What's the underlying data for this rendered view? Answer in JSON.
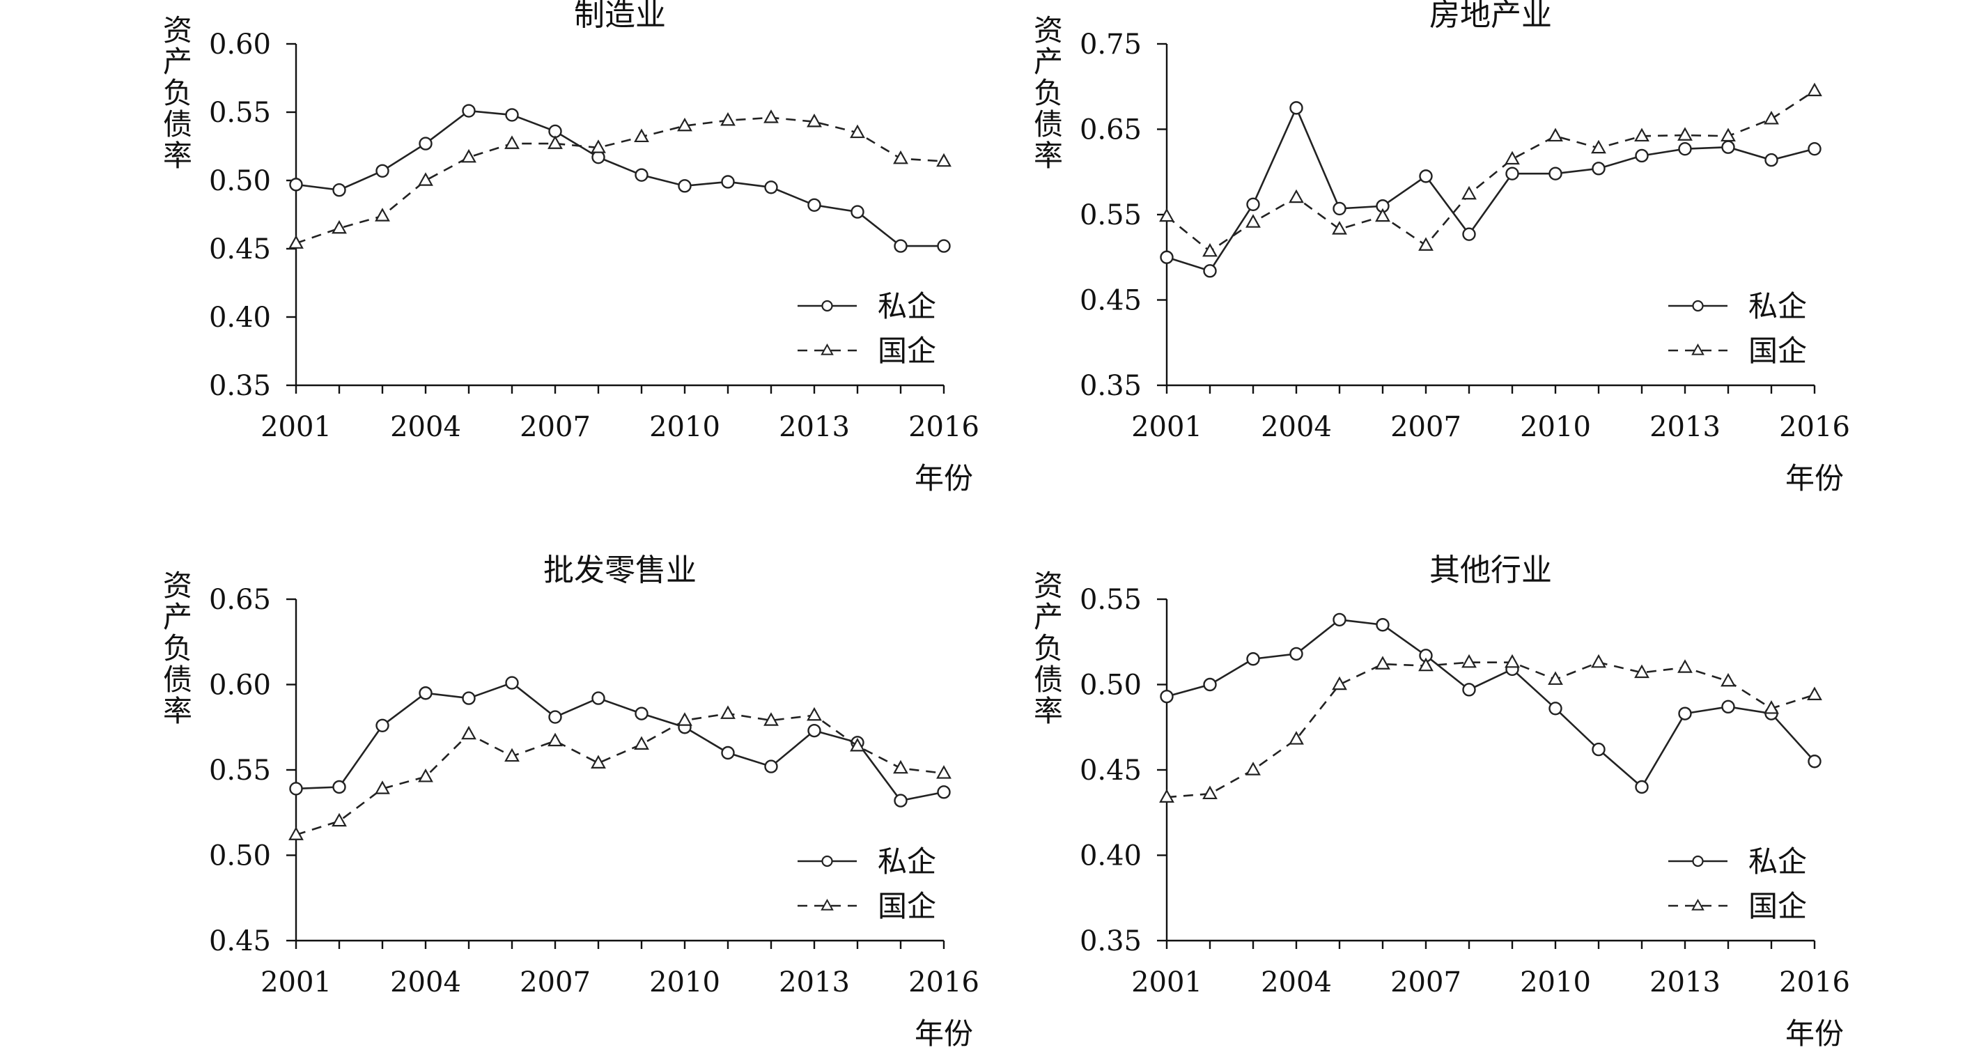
{
  "colors": {
    "axis": "#111111",
    "line": "#222222",
    "background": "#ffffff"
  },
  "chart_data": [
    {
      "type": "line",
      "title": "制造业",
      "xlabel": "年份",
      "ylabel": "资产负债率",
      "ylim": [
        0.35,
        0.6
      ],
      "yticks": [
        "0.60",
        "0.55",
        "0.50",
        "0.45",
        "0.40",
        "0.35"
      ],
      "xticks": [
        "2001",
        "2004",
        "2007",
        "2010",
        "2013",
        "2016"
      ],
      "x": [
        2001,
        2002,
        2003,
        2004,
        2005,
        2006,
        2007,
        2008,
        2009,
        2010,
        2011,
        2012,
        2013,
        2014,
        2015,
        2016
      ],
      "series": [
        {
          "name": "私企",
          "values": [
            0.497,
            0.493,
            0.507,
            0.527,
            0.551,
            0.548,
            0.536,
            0.517,
            0.504,
            0.496,
            0.499,
            0.495,
            0.482,
            0.477,
            0.452,
            0.452
          ]
        },
        {
          "name": "国企",
          "values": [
            0.454,
            0.465,
            0.474,
            0.5,
            0.517,
            0.527,
            0.527,
            0.524,
            0.532,
            0.54,
            0.544,
            0.546,
            0.543,
            0.535,
            0.516,
            0.514
          ]
        }
      ],
      "legend": [
        "私企",
        "国企"
      ]
    },
    {
      "type": "line",
      "title": "房地产业",
      "xlabel": "年份",
      "ylabel": "资产负债率",
      "ylim": [
        0.35,
        0.75
      ],
      "yticks": [
        "0.75",
        "0.65",
        "0.55",
        "0.45",
        "0.35"
      ],
      "xticks": [
        "2001",
        "2004",
        "2007",
        "2010",
        "2013",
        "2016"
      ],
      "x": [
        2001,
        2002,
        2003,
        2004,
        2005,
        2006,
        2007,
        2008,
        2009,
        2010,
        2011,
        2012,
        2013,
        2014,
        2015,
        2016
      ],
      "series": [
        {
          "name": "私企",
          "values": [
            0.5,
            0.484,
            0.562,
            0.675,
            0.557,
            0.56,
            0.595,
            0.527,
            0.598,
            0.598,
            0.604,
            0.619,
            0.627,
            0.629,
            0.614,
            0.627
          ]
        },
        {
          "name": "国企",
          "values": [
            0.548,
            0.507,
            0.541,
            0.57,
            0.533,
            0.548,
            0.514,
            0.574,
            0.615,
            0.642,
            0.628,
            0.642,
            0.643,
            0.642,
            0.662,
            0.695
          ]
        }
      ],
      "legend": [
        "私企",
        "国企"
      ]
    },
    {
      "type": "line",
      "title": "批发零售业",
      "xlabel": "年份",
      "ylabel": "资产负债率",
      "ylim": [
        0.45,
        0.65
      ],
      "yticks": [
        "0.65",
        "0.60",
        "0.55",
        "0.50",
        "0.45"
      ],
      "xticks": [
        "2001",
        "2004",
        "2007",
        "2010",
        "2013",
        "2016"
      ],
      "x": [
        2001,
        2002,
        2003,
        2004,
        2005,
        2006,
        2007,
        2008,
        2009,
        2010,
        2011,
        2012,
        2013,
        2014,
        2015,
        2016
      ],
      "series": [
        {
          "name": "私企",
          "values": [
            0.539,
            0.54,
            0.576,
            0.595,
            0.592,
            0.601,
            0.581,
            0.592,
            0.583,
            0.575,
            0.56,
            0.552,
            0.573,
            0.566,
            0.532,
            0.537
          ]
        },
        {
          "name": "国企",
          "values": [
            0.512,
            0.52,
            0.539,
            0.546,
            0.571,
            0.558,
            0.567,
            0.554,
            0.565,
            0.579,
            0.583,
            0.579,
            0.582,
            0.564,
            0.551,
            0.548
          ]
        }
      ],
      "legend": [
        "私企",
        "国企"
      ]
    },
    {
      "type": "line",
      "title": "其他行业",
      "xlabel": "年份",
      "ylabel": "资产负债率",
      "ylim": [
        0.35,
        0.55
      ],
      "yticks": [
        "0.55",
        "0.50",
        "0.45",
        "0.40",
        "0.35"
      ],
      "xticks": [
        "2001",
        "2004",
        "2007",
        "2010",
        "2013",
        "2016"
      ],
      "x": [
        2001,
        2002,
        2003,
        2004,
        2005,
        2006,
        2007,
        2008,
        2009,
        2010,
        2011,
        2012,
        2013,
        2014,
        2015,
        2016
      ],
      "series": [
        {
          "name": "私企",
          "values": [
            0.493,
            0.5,
            0.515,
            0.518,
            0.538,
            0.535,
            0.517,
            0.497,
            0.509,
            0.486,
            0.462,
            0.44,
            0.483,
            0.487,
            0.483,
            0.455
          ]
        },
        {
          "name": "国企",
          "values": [
            0.434,
            0.436,
            0.45,
            0.468,
            0.5,
            0.512,
            0.511,
            0.513,
            0.513,
            0.503,
            0.513,
            0.507,
            0.51,
            0.502,
            0.486,
            0.494
          ]
        }
      ],
      "legend": [
        "私企",
        "国企"
      ]
    }
  ]
}
